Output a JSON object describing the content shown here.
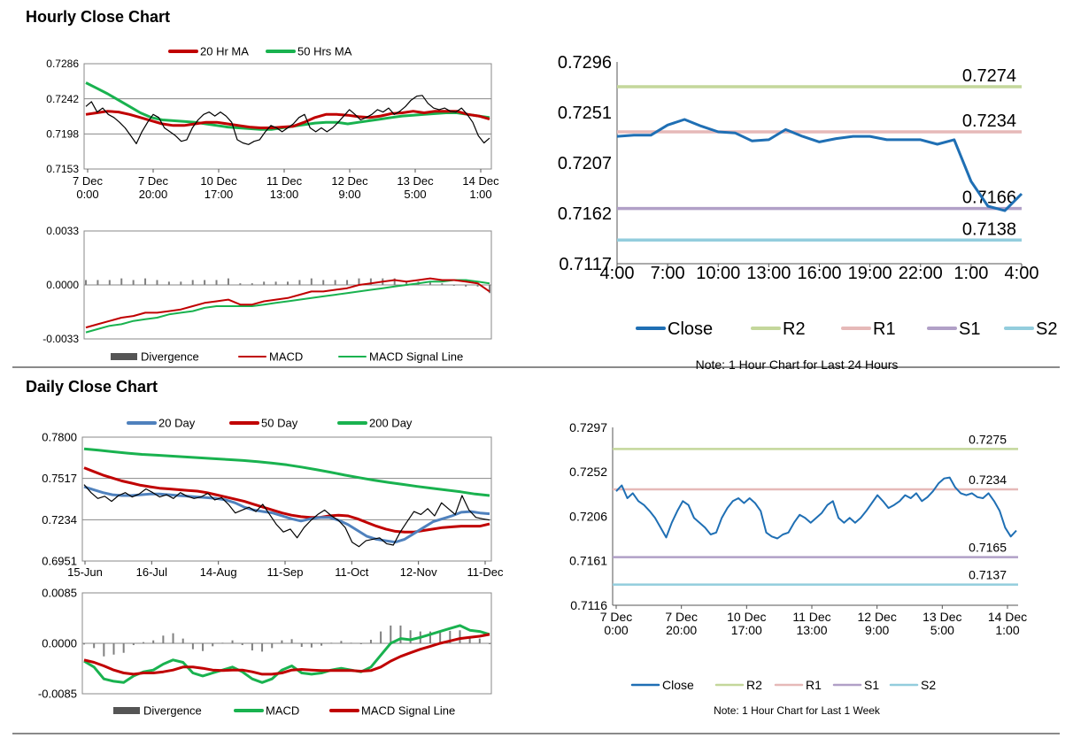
{
  "hourly": {
    "title": "Hourly Close Chart",
    "price": {
      "legend": [
        "20 Hr MA",
        "50 Hrs MA"
      ],
      "colors": [
        "#c00000",
        "#19b24f"
      ],
      "y_ticks": [
        "0.7286",
        "0.7242",
        "0.7198",
        "0.7153"
      ],
      "ylim": [
        0.7153,
        0.7286
      ],
      "x_ticks": [
        [
          "7 Dec",
          "0:00"
        ],
        [
          "7 Dec",
          "20:00"
        ],
        [
          "10 Dec",
          "17:00"
        ],
        [
          "11 Dec",
          "13:00"
        ],
        [
          "12 Dec",
          "9:00"
        ],
        [
          "13 Dec",
          "5:00"
        ],
        [
          "14 Dec",
          "1:00"
        ]
      ],
      "close": [
        0.7232,
        0.7238,
        0.7225,
        0.723,
        0.7222,
        0.7218,
        0.7212,
        0.7205,
        0.7195,
        0.7185,
        0.72,
        0.7212,
        0.7222,
        0.7218,
        0.7205,
        0.72,
        0.7195,
        0.7188,
        0.719,
        0.7205,
        0.7215,
        0.7222,
        0.7225,
        0.722,
        0.7225,
        0.722,
        0.7212,
        0.719,
        0.7186,
        0.7184,
        0.7188,
        0.719,
        0.72,
        0.7208,
        0.7205,
        0.72,
        0.7205,
        0.721,
        0.7218,
        0.7222,
        0.7205,
        0.72,
        0.7205,
        0.72,
        0.7205,
        0.7212,
        0.722,
        0.7228,
        0.7222,
        0.7215,
        0.7218,
        0.7222,
        0.7228,
        0.7225,
        0.723,
        0.7222,
        0.7226,
        0.7232,
        0.724,
        0.7245,
        0.7246,
        0.7236,
        0.723,
        0.7228,
        0.723,
        0.7226,
        0.7225,
        0.723,
        0.7222,
        0.7212,
        0.7195,
        0.7186,
        0.7192
      ],
      "ma20": [
        0.7222,
        0.7224,
        0.7226,
        0.7225,
        0.7222,
        0.7218,
        0.7214,
        0.721,
        0.7208,
        0.7208,
        0.721,
        0.7212,
        0.7212,
        0.721,
        0.7208,
        0.7206,
        0.7205,
        0.7205,
        0.7206,
        0.7207,
        0.7212,
        0.7218,
        0.7222,
        0.7222,
        0.7221,
        0.7219,
        0.7218,
        0.722,
        0.7223,
        0.7224,
        0.7226,
        0.7224,
        0.7226,
        0.7226,
        0.7226,
        0.7222,
        0.722,
        0.7216
      ],
      "ma50": [
        0.7262,
        0.7255,
        0.7248,
        0.724,
        0.7232,
        0.7224,
        0.7218,
        0.7215,
        0.7214,
        0.7213,
        0.7212,
        0.721,
        0.7208,
        0.7206,
        0.7205,
        0.7204,
        0.7203,
        0.7203,
        0.7205,
        0.7207,
        0.7209,
        0.7211,
        0.7212,
        0.7212,
        0.721,
        0.7212,
        0.7214,
        0.7216,
        0.7218,
        0.722,
        0.7221,
        0.7222,
        0.7223,
        0.7224,
        0.7224,
        0.7222,
        0.722,
        0.7218
      ]
    },
    "macd": {
      "legend": [
        "Divergence",
        "MACD",
        "MACD Signal Line"
      ],
      "colors": [
        "#555555",
        "#c00000",
        "#19b24f"
      ],
      "y_ticks": [
        "0.0033",
        "0.0000",
        "-0.0033"
      ],
      "ylim": [
        -0.0033,
        0.0033
      ],
      "macd": [
        -0.0026,
        -0.0024,
        -0.0022,
        -0.002,
        -0.0019,
        -0.0017,
        -0.0017,
        -0.0016,
        -0.0015,
        -0.0013,
        -0.0011,
        -0.001,
        -0.0009,
        -0.0012,
        -0.0012,
        -0.001,
        -0.0009,
        -0.0008,
        -0.0006,
        -0.0004,
        -0.0004,
        -0.0003,
        -0.0002,
        0.0,
        0.0001,
        0.0002,
        0.0003,
        0.0002,
        0.0003,
        0.0004,
        0.0003,
        0.0003,
        0.0002,
        0.0001,
        -0.0004
      ],
      "signal": [
        -0.0029,
        -0.0027,
        -0.0025,
        -0.0024,
        -0.0022,
        -0.0021,
        -0.002,
        -0.0018,
        -0.0017,
        -0.0016,
        -0.0014,
        -0.0013,
        -0.0013,
        -0.0013,
        -0.0013,
        -0.0012,
        -0.0011,
        -0.001,
        -0.0009,
        -0.0008,
        -0.0007,
        -0.0006,
        -0.0005,
        -0.0004,
        -0.0003,
        -0.0002,
        -0.0001,
        0.0,
        0.0001,
        0.0002,
        0.0002,
        0.0003,
        0.0003,
        0.0002,
        0.0001
      ],
      "divergence": [
        0.0003,
        0.0003,
        0.0003,
        0.0004,
        0.0003,
        0.0004,
        0.0003,
        0.0002,
        0.0002,
        0.0003,
        0.0003,
        0.0003,
        0.0004,
        0.0001,
        0.0001,
        0.0002,
        0.0002,
        0.0002,
        0.0003,
        0.0004,
        0.0003,
        0.0003,
        0.0003,
        0.0004,
        0.0004,
        0.0004,
        0.0004,
        0.0002,
        0.0002,
        0.0002,
        0.0001,
        0.0,
        -0.0001,
        -0.0001,
        -0.0005
      ]
    },
    "levels": {
      "legend": [
        "Close",
        "R2",
        "R1",
        "S1",
        "S2"
      ],
      "colors": [
        "#1f6fb4",
        "#c4d79b",
        "#e6b9b8",
        "#b1a0c7",
        "#93cddd"
      ],
      "y_ticks": [
        "0.7296",
        "0.7251",
        "0.7207",
        "0.7162",
        "0.7117"
      ],
      "ylim": [
        0.7117,
        0.7296
      ],
      "x_ticks": [
        "4:00",
        "7:00",
        "10:00",
        "13:00",
        "16:00",
        "19:00",
        "22:00",
        "1:00",
        "4:00"
      ],
      "close": [
        0.723,
        0.7231,
        0.7231,
        0.724,
        0.7245,
        0.7239,
        0.7234,
        0.7233,
        0.7226,
        0.7227,
        0.7236,
        0.723,
        0.7225,
        0.7228,
        0.723,
        0.723,
        0.7227,
        0.7227,
        0.7227,
        0.7223,
        0.7227,
        0.719,
        0.7168,
        0.7164,
        0.7179
      ],
      "R2": 0.7274,
      "R1": 0.7234,
      "S1": 0.7166,
      "S2": 0.7138,
      "labels": {
        "R2": "0.7274",
        "R1": "0.7234",
        "S1": "0.7166",
        "S2": "0.7138"
      },
      "note": "Note: 1 Hour Chart for Last 24 Hours"
    }
  },
  "daily": {
    "title": "Daily Close Chart",
    "price": {
      "legend": [
        "20 Day",
        "50 Day",
        "200 Day"
      ],
      "colors": [
        "#4f81bd",
        "#c00000",
        "#19b24f"
      ],
      "y_ticks": [
        "0.7800",
        "0.7517",
        "0.7234",
        "0.6951"
      ],
      "ylim": [
        0.6951,
        0.78
      ],
      "x_ticks": [
        "15-Jun",
        "16-Jul",
        "14-Aug",
        "11-Sep",
        "11-Oct",
        "12-Nov",
        "11-Dec"
      ],
      "close": [
        0.7475,
        0.742,
        0.738,
        0.7395,
        0.736,
        0.74,
        0.742,
        0.739,
        0.741,
        0.7445,
        0.742,
        0.739,
        0.7405,
        0.738,
        0.742,
        0.7395,
        0.738,
        0.739,
        0.7415,
        0.737,
        0.7385,
        0.734,
        0.728,
        0.73,
        0.732,
        0.729,
        0.734,
        0.727,
        0.72,
        0.715,
        0.717,
        0.711,
        0.718,
        0.723,
        0.727,
        0.73,
        0.726,
        0.723,
        0.718,
        0.708,
        0.705,
        0.709,
        0.71,
        0.711,
        0.707,
        0.706,
        0.715,
        0.722,
        0.729,
        0.727,
        0.731,
        0.726,
        0.735,
        0.731,
        0.727,
        0.74,
        0.73,
        0.725,
        0.724,
        0.7232
      ],
      "ma20": [
        0.746,
        0.744,
        0.742,
        0.7405,
        0.74,
        0.74,
        0.7405,
        0.741,
        0.741,
        0.7405,
        0.74,
        0.7395,
        0.739,
        0.7385,
        0.738,
        0.737,
        0.735,
        0.732,
        0.73,
        0.729,
        0.728,
        0.726,
        0.724,
        0.7225,
        0.724,
        0.725,
        0.725,
        0.723,
        0.72,
        0.716,
        0.712,
        0.71,
        0.709,
        0.708,
        0.71,
        0.714,
        0.718,
        0.722,
        0.724,
        0.726,
        0.7285,
        0.729,
        0.728,
        0.7275
      ],
      "ma50": [
        0.759,
        0.7565,
        0.754,
        0.752,
        0.75,
        0.7485,
        0.747,
        0.746,
        0.745,
        0.7445,
        0.744,
        0.7435,
        0.743,
        0.742,
        0.7405,
        0.739,
        0.7375,
        0.736,
        0.734,
        0.732,
        0.73,
        0.728,
        0.7265,
        0.7255,
        0.725,
        0.725,
        0.726,
        0.7265,
        0.726,
        0.724,
        0.7215,
        0.719,
        0.717,
        0.7155,
        0.715,
        0.715,
        0.716,
        0.717,
        0.718,
        0.7185,
        0.719,
        0.719,
        0.719,
        0.7205
      ],
      "ma200": [
        0.772,
        0.771,
        0.77,
        0.769,
        0.7682,
        0.7676,
        0.767,
        0.7664,
        0.7658,
        0.7652,
        0.7646,
        0.764,
        0.7632,
        0.7622,
        0.761,
        0.7595,
        0.7578,
        0.756,
        0.754,
        0.7522,
        0.7505,
        0.749,
        0.7476,
        0.7462,
        0.745,
        0.7438,
        0.7425,
        0.741,
        0.74
      ]
    },
    "macd": {
      "legend": [
        "Divergence",
        "MACD",
        "MACD Signal Line"
      ],
      "colors": [
        "#555555",
        "#19b24f",
        "#c00000"
      ],
      "y_ticks": [
        "0.0085",
        "0.0000",
        "-0.0085"
      ],
      "ylim": [
        -0.0085,
        0.0085
      ],
      "macd": [
        -0.003,
        -0.004,
        -0.006,
        -0.0064,
        -0.0066,
        -0.0055,
        -0.0048,
        -0.0045,
        -0.0035,
        -0.0028,
        -0.0032,
        -0.005,
        -0.0055,
        -0.005,
        -0.0045,
        -0.004,
        -0.0048,
        -0.006,
        -0.0066,
        -0.006,
        -0.0045,
        -0.0038,
        -0.005,
        -0.0052,
        -0.005,
        -0.0045,
        -0.0042,
        -0.0045,
        -0.0048,
        -0.004,
        -0.002,
        0.0,
        0.0008,
        0.0006,
        0.001,
        0.0015,
        0.002,
        0.0025,
        0.003,
        0.0022,
        0.002,
        0.0015
      ],
      "signal": [
        -0.0028,
        -0.0032,
        -0.0038,
        -0.0045,
        -0.005,
        -0.0052,
        -0.005,
        -0.005,
        -0.0048,
        -0.0045,
        -0.004,
        -0.004,
        -0.0042,
        -0.0045,
        -0.0046,
        -0.0045,
        -0.0045,
        -0.0048,
        -0.0052,
        -0.0052,
        -0.005,
        -0.0045,
        -0.0044,
        -0.0045,
        -0.0046,
        -0.0046,
        -0.0046,
        -0.0046,
        -0.0047,
        -0.0046,
        -0.004,
        -0.003,
        -0.0022,
        -0.0016,
        -0.001,
        -0.0005,
        0.0,
        0.0004,
        0.0008,
        0.001,
        0.0012,
        0.0015
      ],
      "divergence": [
        -0.0002,
        -0.0008,
        -0.0022,
        -0.0019,
        -0.0016,
        -0.0003,
        0.0002,
        0.0005,
        0.0013,
        0.0017,
        0.0008,
        -0.001,
        -0.0013,
        -0.0005,
        0.0001,
        0.0005,
        -0.0003,
        -0.0012,
        -0.0014,
        -0.0008,
        0.0005,
        0.0007,
        -0.0006,
        -0.0007,
        -0.0004,
        0.0001,
        0.0004,
        0.0001,
        -0.0001,
        0.0006,
        0.002,
        0.003,
        0.003,
        0.0022,
        0.002,
        0.002,
        0.002,
        0.0021,
        0.0022,
        0.0012,
        0.0008,
        0.0
      ]
    },
    "levels": {
      "legend": [
        "Close",
        "R2",
        "R1",
        "S1",
        "S2"
      ],
      "colors": [
        "#1f6fb4",
        "#c4d79b",
        "#e6b9b8",
        "#b1a0c7",
        "#93cddd"
      ],
      "y_ticks": [
        "0.7297",
        "0.7252",
        "0.7206",
        "0.7161",
        "0.7116"
      ],
      "ylim": [
        0.7116,
        0.7297
      ],
      "x_ticks": [
        [
          "7 Dec",
          "0:00"
        ],
        [
          "7 Dec",
          "20:00"
        ],
        [
          "10 Dec",
          "17:00"
        ],
        [
          "11 Dec",
          "13:00"
        ],
        [
          "12 Dec",
          "9:00"
        ],
        [
          "13 Dec",
          "5:00"
        ],
        [
          "14 Dec",
          "1:00"
        ]
      ],
      "close": [
        0.7232,
        0.7238,
        0.7225,
        0.723,
        0.7222,
        0.7218,
        0.7212,
        0.7205,
        0.7195,
        0.7185,
        0.72,
        0.7212,
        0.7222,
        0.7218,
        0.7205,
        0.72,
        0.7195,
        0.7188,
        0.719,
        0.7205,
        0.7215,
        0.7222,
        0.7225,
        0.722,
        0.7225,
        0.722,
        0.7212,
        0.719,
        0.7186,
        0.7184,
        0.7188,
        0.719,
        0.72,
        0.7208,
        0.7205,
        0.72,
        0.7205,
        0.721,
        0.7218,
        0.7222,
        0.7205,
        0.72,
        0.7205,
        0.72,
        0.7205,
        0.7212,
        0.722,
        0.7228,
        0.7222,
        0.7215,
        0.7218,
        0.7222,
        0.7228,
        0.7225,
        0.723,
        0.7222,
        0.7226,
        0.7232,
        0.724,
        0.7245,
        0.7246,
        0.7236,
        0.723,
        0.7228,
        0.723,
        0.7226,
        0.7225,
        0.723,
        0.7222,
        0.7212,
        0.7195,
        0.7186,
        0.7192
      ],
      "R2": 0.7275,
      "R1": 0.7234,
      "S1": 0.7165,
      "S2": 0.7137,
      "labels": {
        "R2": "0.7275",
        "R1": "0.7234",
        "S1": "0.7165",
        "S2": "0.7137"
      },
      "note": "Note: 1 Hour Chart for Last 1 Week"
    }
  }
}
